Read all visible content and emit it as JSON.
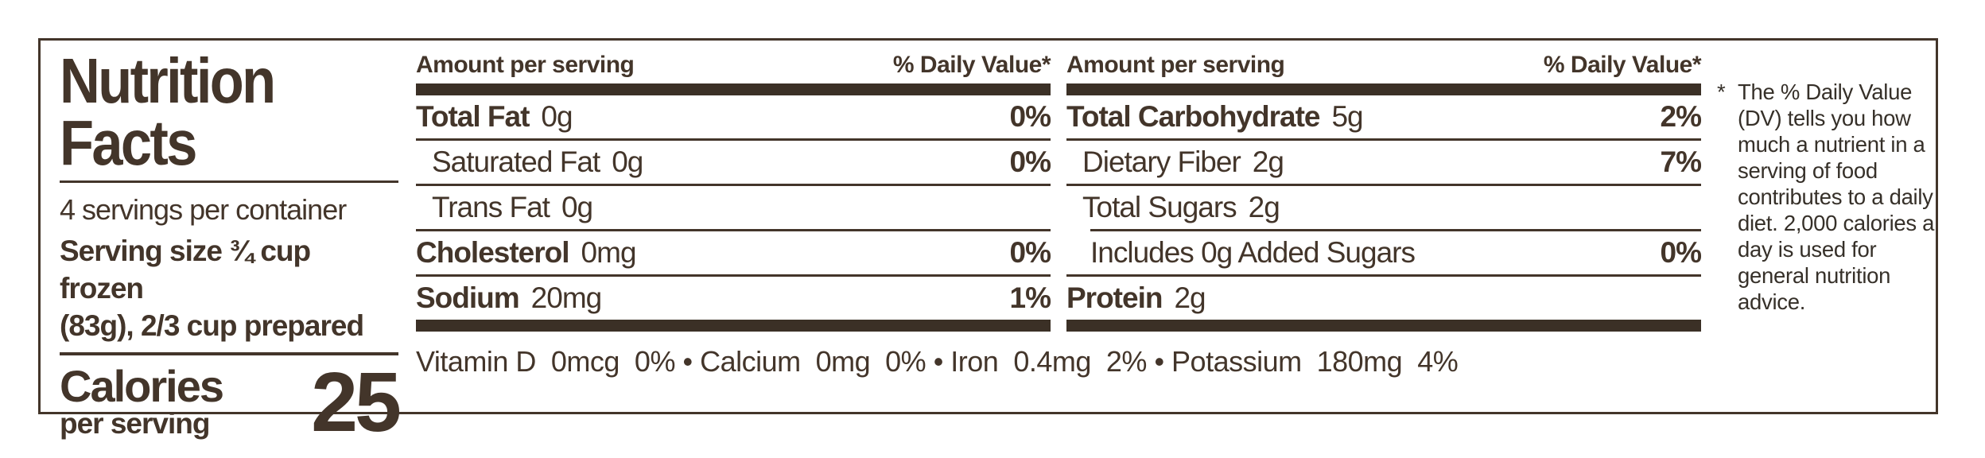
{
  "label": {
    "title_line1": "Nutrition",
    "title_line2": "Facts",
    "servings_per_container": "4 servings per container",
    "serving_size_line1": "Serving size ¾ cup frozen",
    "serving_size_line2": "(83g), 2/3 cup prepared",
    "calories_label": "Calories",
    "calories_sublabel": "per serving",
    "calories_value": "25",
    "columns": [
      {
        "amount_header": "Amount per serving",
        "dv_header": "% Daily Value*",
        "rows": [
          {
            "name": "Total Fat",
            "amount": "0g",
            "dv": "0%",
            "name_bold": true,
            "indent": 0,
            "rule_above": "none"
          },
          {
            "name": "Saturated Fat",
            "amount": "0g",
            "dv": "0%",
            "name_bold": false,
            "indent": 1,
            "rule_above": "full"
          },
          {
            "name": "Trans Fat",
            "amount": "0g",
            "dv": "",
            "name_bold": false,
            "indent": 1,
            "rule_above": "full"
          },
          {
            "name": "Cholesterol",
            "amount": "0mg",
            "dv": "0%",
            "name_bold": true,
            "indent": 0,
            "rule_above": "full"
          },
          {
            "name": "Sodium",
            "amount": "20mg",
            "dv": "1%",
            "name_bold": true,
            "indent": 0,
            "rule_above": "full"
          }
        ]
      },
      {
        "amount_header": "Amount per serving",
        "dv_header": "% Daily Value*",
        "rows": [
          {
            "name": "Total Carbohydrate",
            "amount": "5g",
            "dv": "2%",
            "name_bold": true,
            "indent": 0,
            "rule_above": "none"
          },
          {
            "name": "Dietary Fiber",
            "amount": "2g",
            "dv": "7%",
            "name_bold": false,
            "indent": 1,
            "rule_above": "full"
          },
          {
            "name": "Total Sugars",
            "amount": "2g",
            "dv": "",
            "name_bold": false,
            "indent": 1,
            "rule_above": "full"
          },
          {
            "name": "Includes 0g Added Sugars",
            "amount": "",
            "dv": "0%",
            "name_bold": false,
            "indent": 2,
            "rule_above": "indented"
          },
          {
            "name": "Protein",
            "amount": "2g",
            "dv": "",
            "name_bold": true,
            "indent": 0,
            "rule_above": "full"
          }
        ]
      }
    ],
    "micronutrients": [
      {
        "name": "Vitamin D",
        "amount": "0mcg",
        "dv": "0%"
      },
      {
        "name": "Calcium",
        "amount": "0mg",
        "dv": "0%"
      },
      {
        "name": "Iron",
        "amount": "0.4mg",
        "dv": "2%"
      },
      {
        "name": "Potassium",
        "amount": "180mg",
        "dv": "4%"
      }
    ],
    "micronutrient_separator": "•",
    "footnote_marker": "*",
    "footnote": "The % Daily Value (DV) tells you how much a nutrient in a serving of food contributes to a daily diet. 2,000 calories a day is used for general nutrition advice."
  },
  "colors": {
    "ink": "#43352a",
    "bar": "#3b3026",
    "background": "#ffffff"
  }
}
